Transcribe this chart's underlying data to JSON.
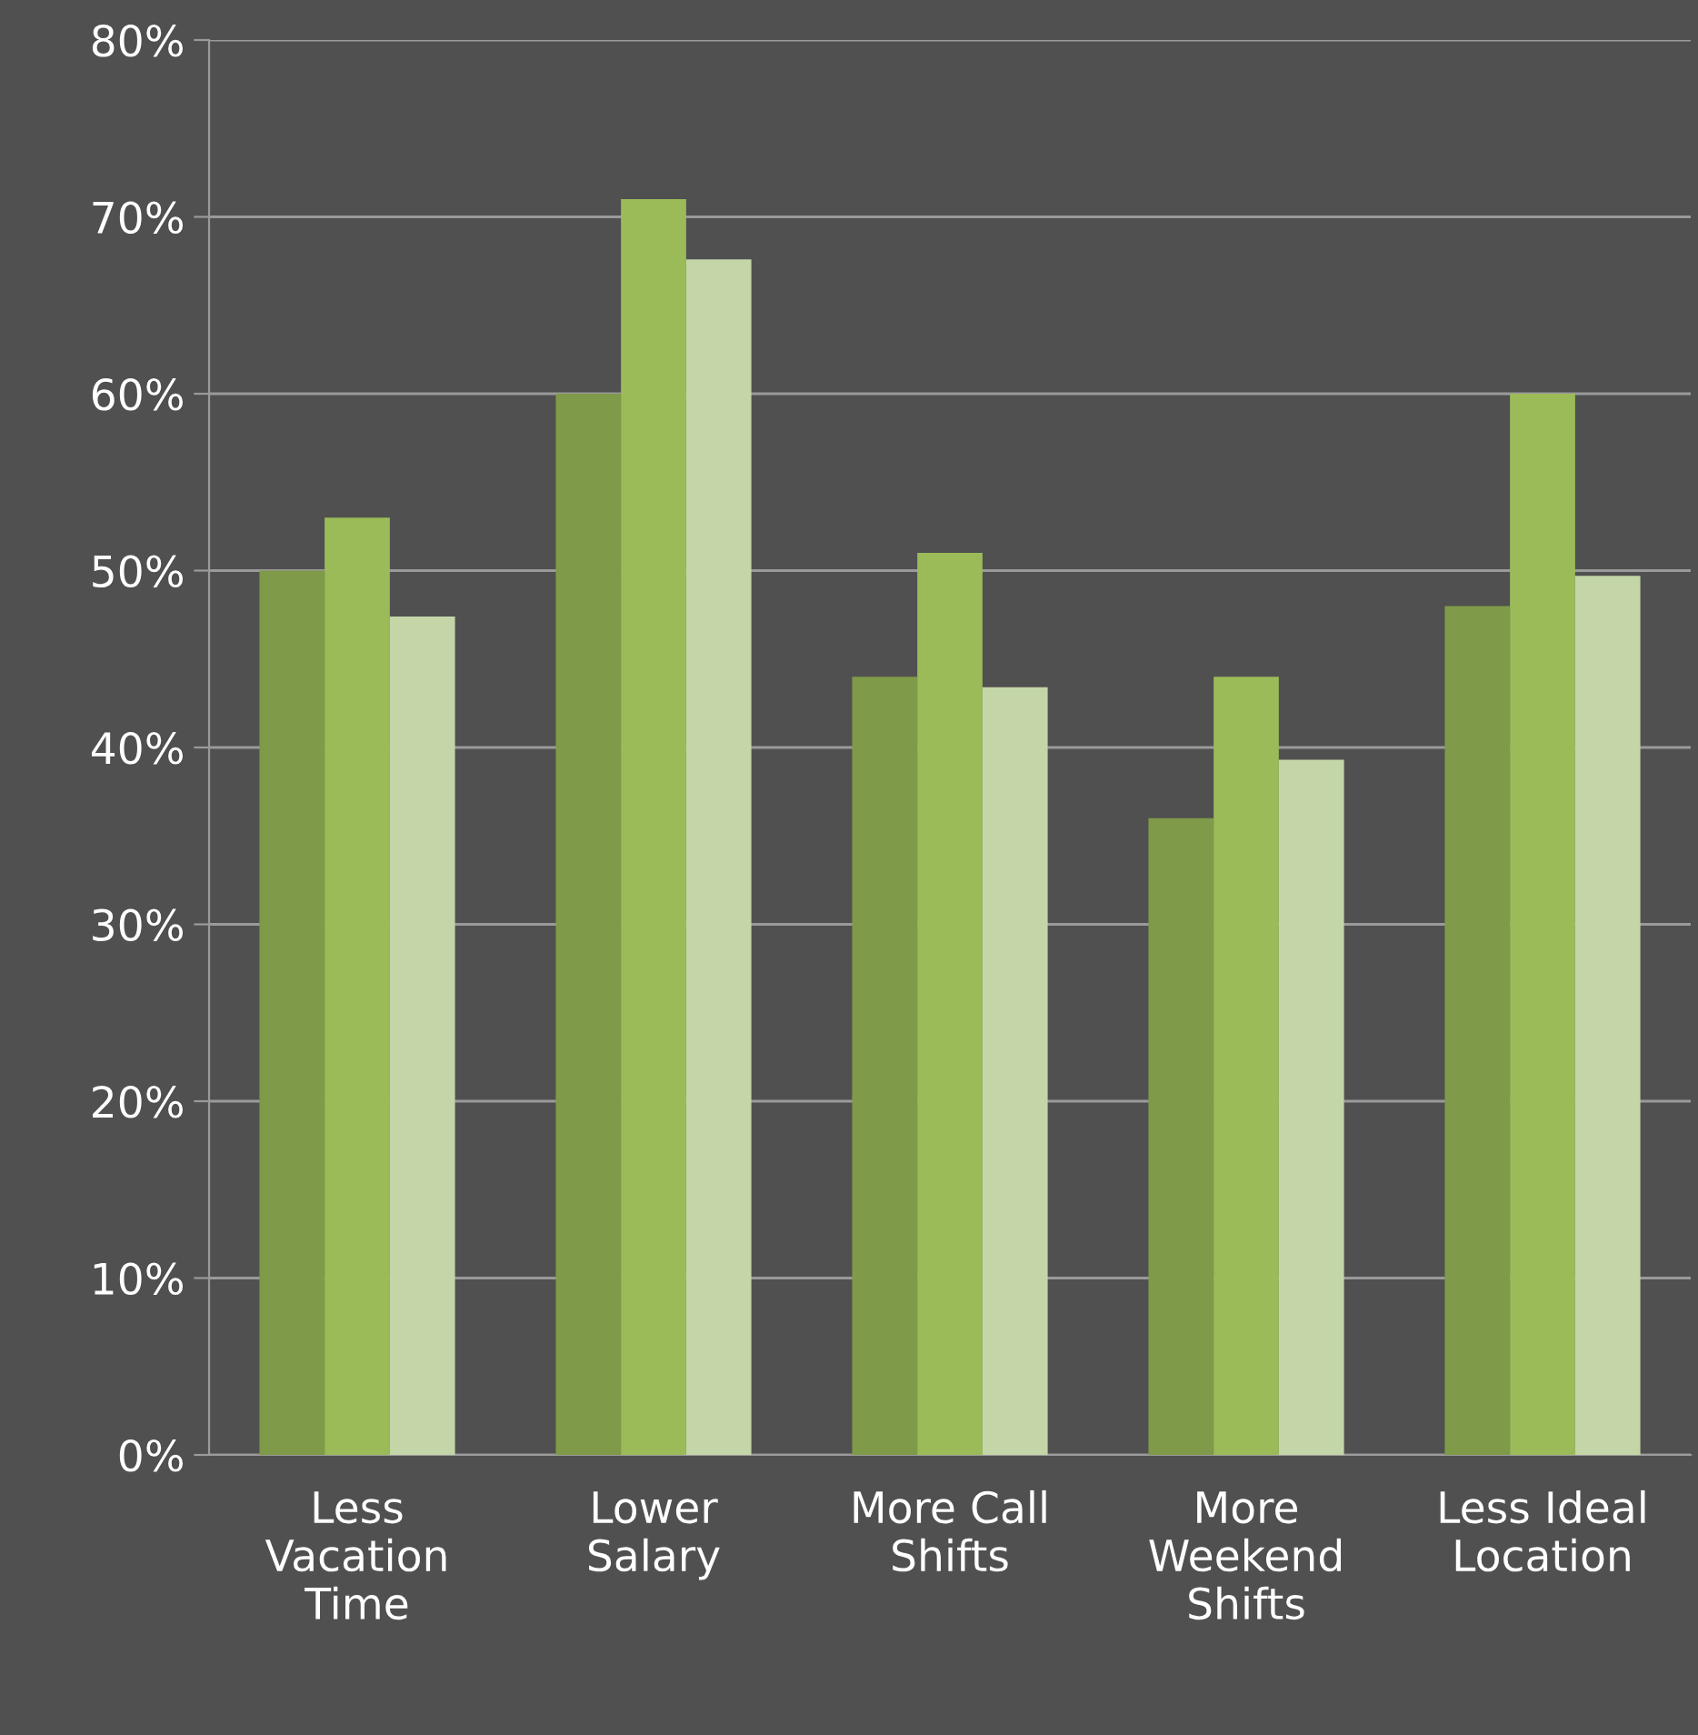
{
  "chart_data": {
    "type": "bar",
    "categories": [
      "Less\nVacation\nTime",
      "Lower\nSalary",
      "More Call\nShifts",
      "More\nWeekend\nShifts",
      "Less Ideal\nLocation"
    ],
    "series": [
      {
        "color": "#7f9a48",
        "values": [
          50,
          60,
          44,
          36,
          48
        ]
      },
      {
        "color": "#9bbb59",
        "values": [
          53,
          71,
          51,
          44,
          60
        ]
      },
      {
        "color": "#c4d6a8",
        "values": [
          47.4,
          67.6,
          43.4,
          39.3,
          49.7
        ]
      }
    ],
    "ylim": [
      0,
      80
    ],
    "yticks": [
      {
        "value": 0,
        "label": "0%"
      },
      {
        "value": 10,
        "label": "10%"
      },
      {
        "value": 20,
        "label": "20%"
      },
      {
        "value": 30,
        "label": "30%"
      },
      {
        "value": 40,
        "label": "40%"
      },
      {
        "value": 50,
        "label": "50%"
      },
      {
        "value": 60,
        "label": "60%"
      },
      {
        "value": 70,
        "label": "70%"
      },
      {
        "value": 80,
        "label": "80%"
      }
    ],
    "grid": "y",
    "legend": false
  }
}
